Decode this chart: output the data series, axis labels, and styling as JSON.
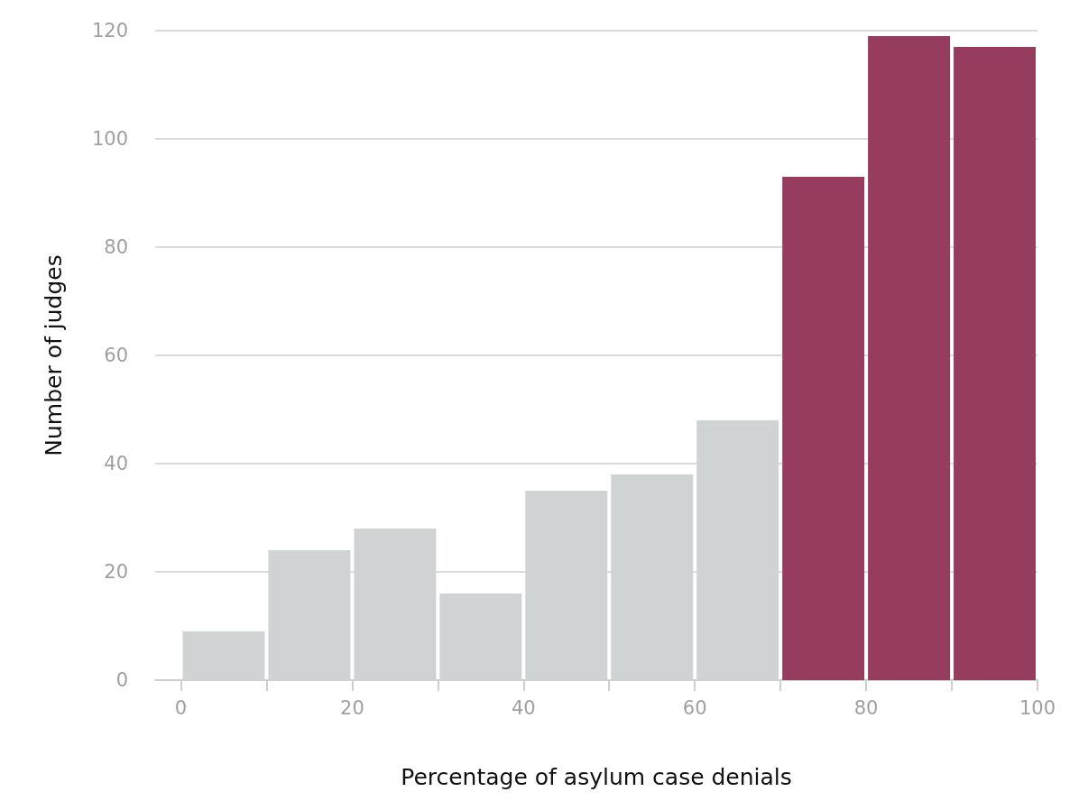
{
  "chart_data": {
    "type": "histogram",
    "xlabel": "Percentage of asylum case denials",
    "ylabel": "Number of judges",
    "bins": [
      0,
      10,
      20,
      30,
      40,
      50,
      60,
      70,
      80,
      90,
      100
    ],
    "values": [
      9,
      24,
      28,
      16,
      35,
      38,
      48,
      93,
      119,
      117
    ],
    "colors": [
      "#d0d3d4",
      "#d0d3d4",
      "#d0d3d4",
      "#d0d3d4",
      "#d0d3d4",
      "#d0d3d4",
      "#d0d3d4",
      "#963d5f",
      "#963d5f",
      "#963d5f"
    ],
    "xlim": [
      -3,
      100
    ],
    "xticks": [
      0,
      {
        "value": 10,
        "label": null
      },
      20,
      {
        "value": 30,
        "label": null
      },
      40,
      {
        "value": 50,
        "label": null
      },
      60,
      {
        "value": 70,
        "label": null
      },
      80,
      {
        "value": 90,
        "label": null
      },
      100
    ],
    "ylim": [
      0,
      120
    ],
    "yticks": [
      0,
      20,
      40,
      60,
      80,
      100,
      120
    ],
    "grid": "y"
  }
}
